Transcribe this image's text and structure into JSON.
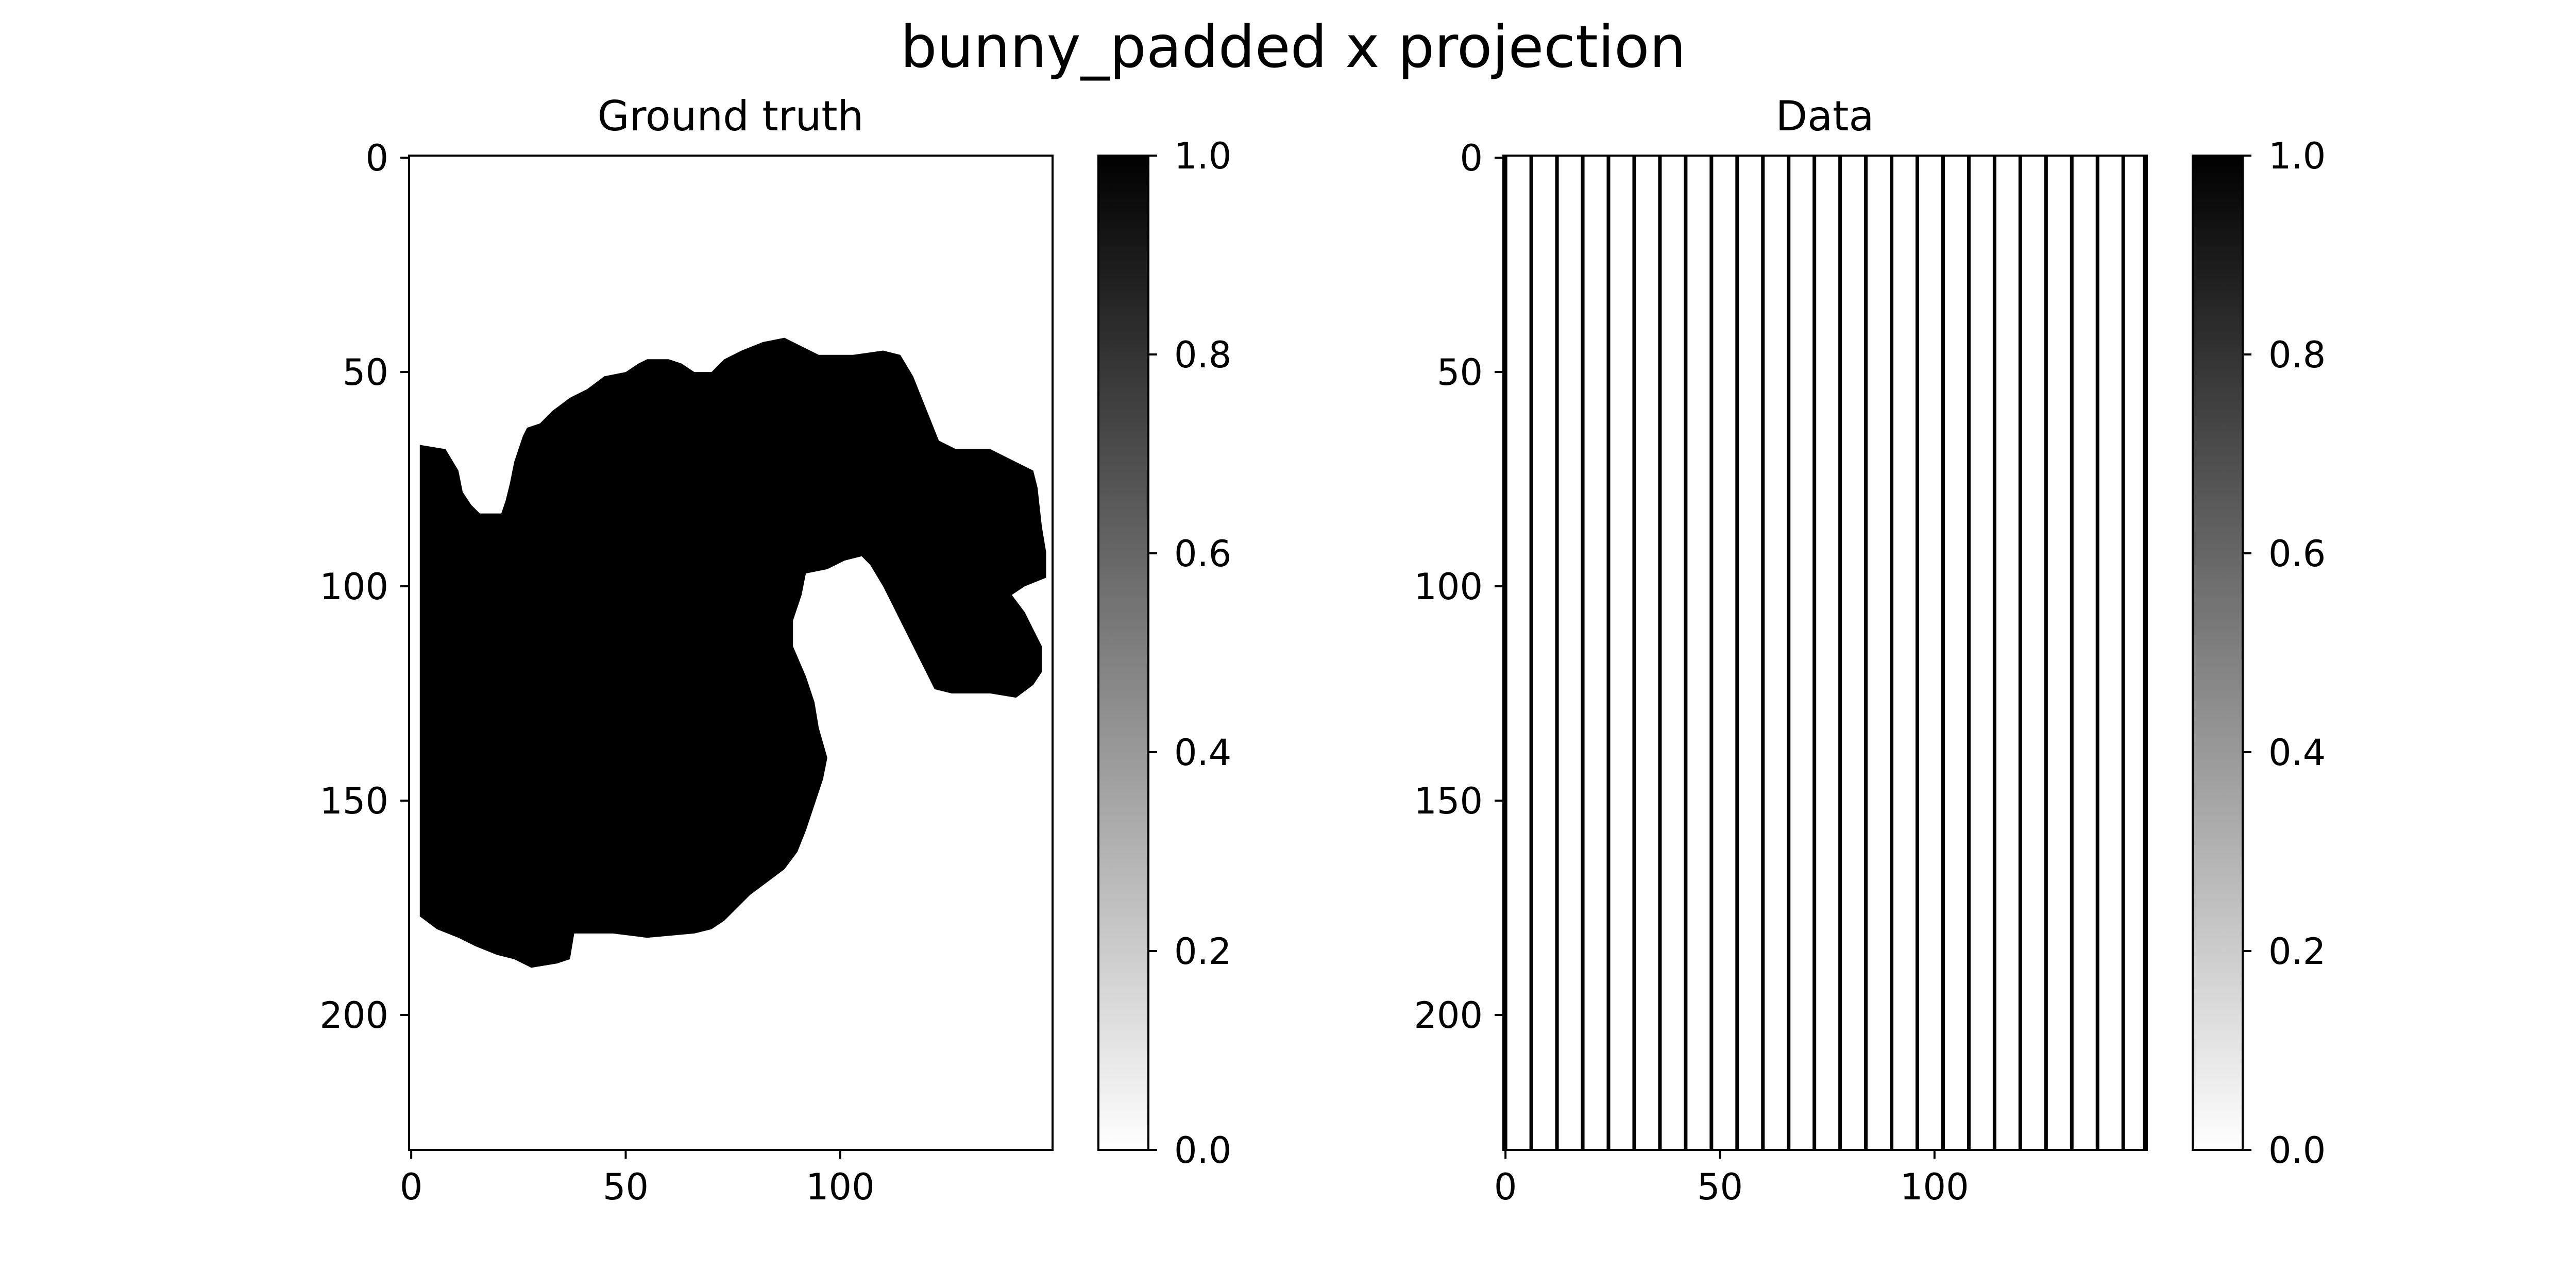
{
  "figure": {
    "suptitle": "bunny_padded x projection"
  },
  "chart_data": [
    {
      "type": "heatmap",
      "title": "Ground truth",
      "xlabel": "",
      "ylabel": "",
      "colormap": "gray_r",
      "image_shape": [
        232,
        150
      ],
      "xlim": [
        -0.5,
        149.5
      ],
      "ylim": [
        231.5,
        -0.5
      ],
      "x_ticks": [
        0,
        50,
        100
      ],
      "x_tick_labels": [
        "0",
        "50",
        "100"
      ],
      "y_ticks": [
        0,
        50,
        100,
        150,
        200
      ],
      "y_tick_labels": [
        "0",
        "50",
        "100",
        "150",
        "200"
      ],
      "colorbar": {
        "range": [
          0.0,
          1.0
        ],
        "ticks": [
          0.0,
          0.2,
          0.4,
          0.6,
          0.8,
          1.0
        ],
        "tick_labels": [
          "0.0",
          "0.2",
          "0.4",
          "0.6",
          "0.8",
          "1.0"
        ]
      },
      "filled_region_value": 1.0,
      "background_value": 0.0,
      "filled_region_outline": [
        [
          2,
          67
        ],
        [
          8,
          68
        ],
        [
          11,
          73
        ],
        [
          12,
          78
        ],
        [
          14,
          81
        ],
        [
          16,
          83
        ],
        [
          21,
          83
        ],
        [
          22,
          80
        ],
        [
          23,
          76
        ],
        [
          24,
          71
        ],
        [
          26,
          65
        ],
        [
          27,
          63
        ],
        [
          30,
          62
        ],
        [
          33,
          59
        ],
        [
          37,
          56
        ],
        [
          41,
          54
        ],
        [
          45,
          51
        ],
        [
          50,
          50
        ],
        [
          53,
          48
        ],
        [
          55,
          47
        ],
        [
          60,
          47
        ],
        [
          63,
          48
        ],
        [
          66,
          50
        ],
        [
          70,
          50
        ],
        [
          73,
          47
        ],
        [
          77,
          45
        ],
        [
          82,
          43
        ],
        [
          87,
          42
        ],
        [
          91,
          44
        ],
        [
          95,
          46
        ],
        [
          99,
          46
        ],
        [
          103,
          46
        ],
        [
          110,
          45
        ],
        [
          114,
          46
        ],
        [
          117,
          51
        ],
        [
          119,
          56
        ],
        [
          121,
          61
        ],
        [
          123,
          66
        ],
        [
          127,
          68
        ],
        [
          135,
          68
        ],
        [
          139,
          70
        ],
        [
          145,
          73
        ],
        [
          146,
          77
        ],
        [
          147,
          86
        ],
        [
          148,
          92
        ],
        [
          148,
          98
        ],
        [
          143,
          100
        ],
        [
          140,
          102
        ],
        [
          143,
          106
        ],
        [
          145,
          110
        ],
        [
          147,
          114
        ],
        [
          147,
          120
        ],
        [
          145,
          123
        ],
        [
          141,
          126
        ],
        [
          135,
          125
        ],
        [
          126,
          125
        ],
        [
          122,
          124
        ],
        [
          120,
          120
        ],
        [
          118,
          116
        ],
        [
          116,
          112
        ],
        [
          114,
          108
        ],
        [
          112,
          104
        ],
        [
          110,
          100
        ],
        [
          107,
          95
        ],
        [
          105,
          93
        ],
        [
          101,
          94
        ],
        [
          97,
          96
        ],
        [
          92,
          97
        ],
        [
          91,
          102
        ],
        [
          89,
          108
        ],
        [
          89,
          114
        ],
        [
          92,
          121
        ],
        [
          94,
          127
        ],
        [
          95,
          133
        ],
        [
          97,
          140
        ],
        [
          96,
          145
        ],
        [
          94,
          151
        ],
        [
          92,
          157
        ],
        [
          90,
          162
        ],
        [
          87,
          166
        ],
        [
          83,
          169
        ],
        [
          79,
          172
        ],
        [
          76,
          175
        ],
        [
          73,
          178
        ],
        [
          70,
          180
        ],
        [
          66,
          181
        ],
        [
          55,
          182
        ],
        [
          47,
          181
        ],
        [
          38,
          181
        ],
        [
          37,
          187
        ],
        [
          34,
          188
        ],
        [
          28,
          189
        ],
        [
          24,
          187
        ],
        [
          20,
          186
        ],
        [
          15,
          184
        ],
        [
          11,
          182
        ],
        [
          6,
          180
        ],
        [
          2,
          177
        ]
      ]
    },
    {
      "type": "heatmap",
      "title": "Data",
      "xlabel": "",
      "ylabel": "",
      "colormap": "gray_r",
      "image_shape": [
        232,
        150
      ],
      "xlim": [
        -0.5,
        149.5
      ],
      "ylim": [
        231.5,
        -0.5
      ],
      "x_ticks": [
        0,
        50,
        100
      ],
      "x_tick_labels": [
        "0",
        "50",
        "100"
      ],
      "y_ticks": [
        0,
        50,
        100,
        150,
        200
      ],
      "y_tick_labels": [
        "0",
        "50",
        "100",
        "150",
        "200"
      ],
      "colorbar": {
        "range": [
          0.0,
          1.0
        ],
        "ticks": [
          0.0,
          0.2,
          0.4,
          0.6,
          0.8,
          1.0
        ],
        "tick_labels": [
          "0.0",
          "0.2",
          "0.4",
          "0.6",
          "0.8",
          "1.0"
        ]
      },
      "line_columns": [
        0,
        6,
        12,
        18,
        24,
        30,
        36,
        42,
        48,
        54,
        60,
        66,
        72,
        78,
        84,
        90,
        96,
        102,
        108,
        114,
        120,
        126,
        132,
        138,
        144,
        149
      ],
      "line_value": 1.0,
      "background_value": 0.0
    }
  ]
}
